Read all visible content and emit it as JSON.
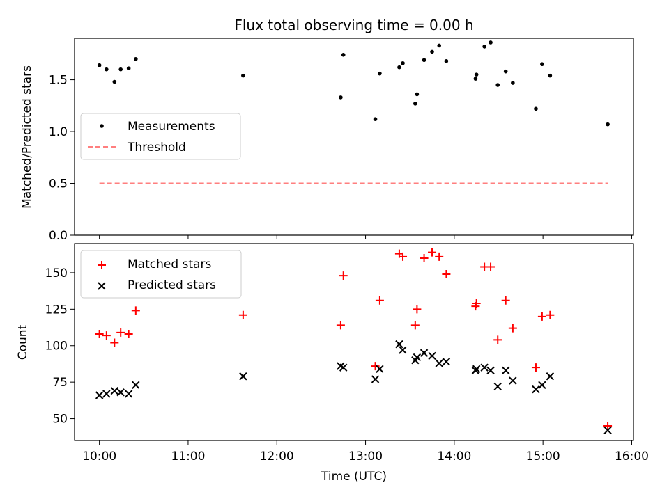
{
  "chart_data": [
    {
      "type": "scatter",
      "title": "Flux total observing time = 0.00 h",
      "xlabel": "",
      "ylabel": "Matched/Predicted stars",
      "ylim": [
        0,
        1.9
      ],
      "yticks": [
        "0.0",
        "0.5",
        "1.0",
        "1.5"
      ],
      "ytick_values": [
        0,
        0.5,
        1.0,
        1.5
      ],
      "legend_position": "center-left",
      "series": [
        {
          "name": "Measurements",
          "marker": "dot",
          "color": "#000000",
          "x": [
            10.0,
            10.08,
            10.17,
            10.24,
            10.33,
            10.41,
            11.62,
            12.72,
            12.75,
            13.11,
            13.16,
            13.38,
            13.42,
            13.56,
            13.58,
            13.66,
            13.75,
            13.83,
            13.91,
            14.24,
            14.25,
            14.34,
            14.41,
            14.49,
            14.58,
            14.66,
            14.92,
            14.99,
            15.08,
            15.73
          ],
          "y": [
            1.64,
            1.6,
            1.48,
            1.6,
            1.61,
            1.7,
            1.54,
            1.33,
            1.74,
            1.12,
            1.56,
            1.62,
            1.66,
            1.27,
            1.36,
            1.69,
            1.77,
            1.83,
            1.68,
            1.51,
            1.55,
            1.82,
            1.86,
            1.45,
            1.58,
            1.47,
            1.22,
            1.65,
            1.54,
            1.07
          ]
        },
        {
          "name": "Threshold",
          "marker": "dashed-line",
          "color": "#ff7f7f",
          "x": [
            10.0,
            15.73
          ],
          "y": [
            0.5,
            0.5
          ]
        }
      ]
    },
    {
      "type": "scatter",
      "title": "",
      "xlabel": "Time (UTC)",
      "ylabel": "Count",
      "xlim": [
        9.72,
        16.02
      ],
      "ylim": [
        35,
        170
      ],
      "xticks": [
        "10:00",
        "11:00",
        "12:00",
        "13:00",
        "14:00",
        "15:00",
        "16:00"
      ],
      "xtick_values": [
        10,
        11,
        12,
        13,
        14,
        15,
        16
      ],
      "yticks": [
        "50",
        "75",
        "100",
        "125",
        "150"
      ],
      "ytick_values": [
        50,
        75,
        100,
        125,
        150
      ],
      "legend_position": "top-left",
      "series": [
        {
          "name": "Matched stars",
          "marker": "plus",
          "color": "#ff0000",
          "x": [
            10.0,
            10.08,
            10.17,
            10.24,
            10.33,
            10.41,
            11.62,
            12.72,
            12.75,
            13.11,
            13.16,
            13.38,
            13.42,
            13.56,
            13.58,
            13.66,
            13.75,
            13.83,
            13.91,
            14.24,
            14.25,
            14.34,
            14.41,
            14.49,
            14.58,
            14.66,
            14.92,
            14.99,
            15.08,
            15.73
          ],
          "y": [
            108,
            107,
            102,
            109,
            108,
            124,
            121,
            114,
            148,
            86,
            131,
            163,
            161,
            114,
            125,
            160,
            164,
            161,
            149,
            127,
            129,
            154,
            154,
            104,
            131,
            112,
            85,
            120,
            121,
            45
          ]
        },
        {
          "name": "Predicted stars",
          "marker": "x",
          "color": "#000000",
          "x": [
            10.0,
            10.08,
            10.17,
            10.24,
            10.33,
            10.41,
            11.62,
            12.72,
            12.75,
            13.11,
            13.16,
            13.38,
            13.42,
            13.56,
            13.58,
            13.66,
            13.75,
            13.83,
            13.91,
            14.24,
            14.25,
            14.34,
            14.41,
            14.49,
            14.58,
            14.66,
            14.92,
            14.99,
            15.08,
            15.73
          ],
          "y": [
            66,
            67,
            69,
            68,
            67,
            73,
            79,
            86,
            85,
            77,
            84,
            101,
            97,
            90,
            92,
            95,
            93,
            88,
            89,
            83,
            84,
            85,
            83,
            72,
            83,
            76,
            70,
            73,
            79,
            42
          ]
        }
      ]
    }
  ]
}
